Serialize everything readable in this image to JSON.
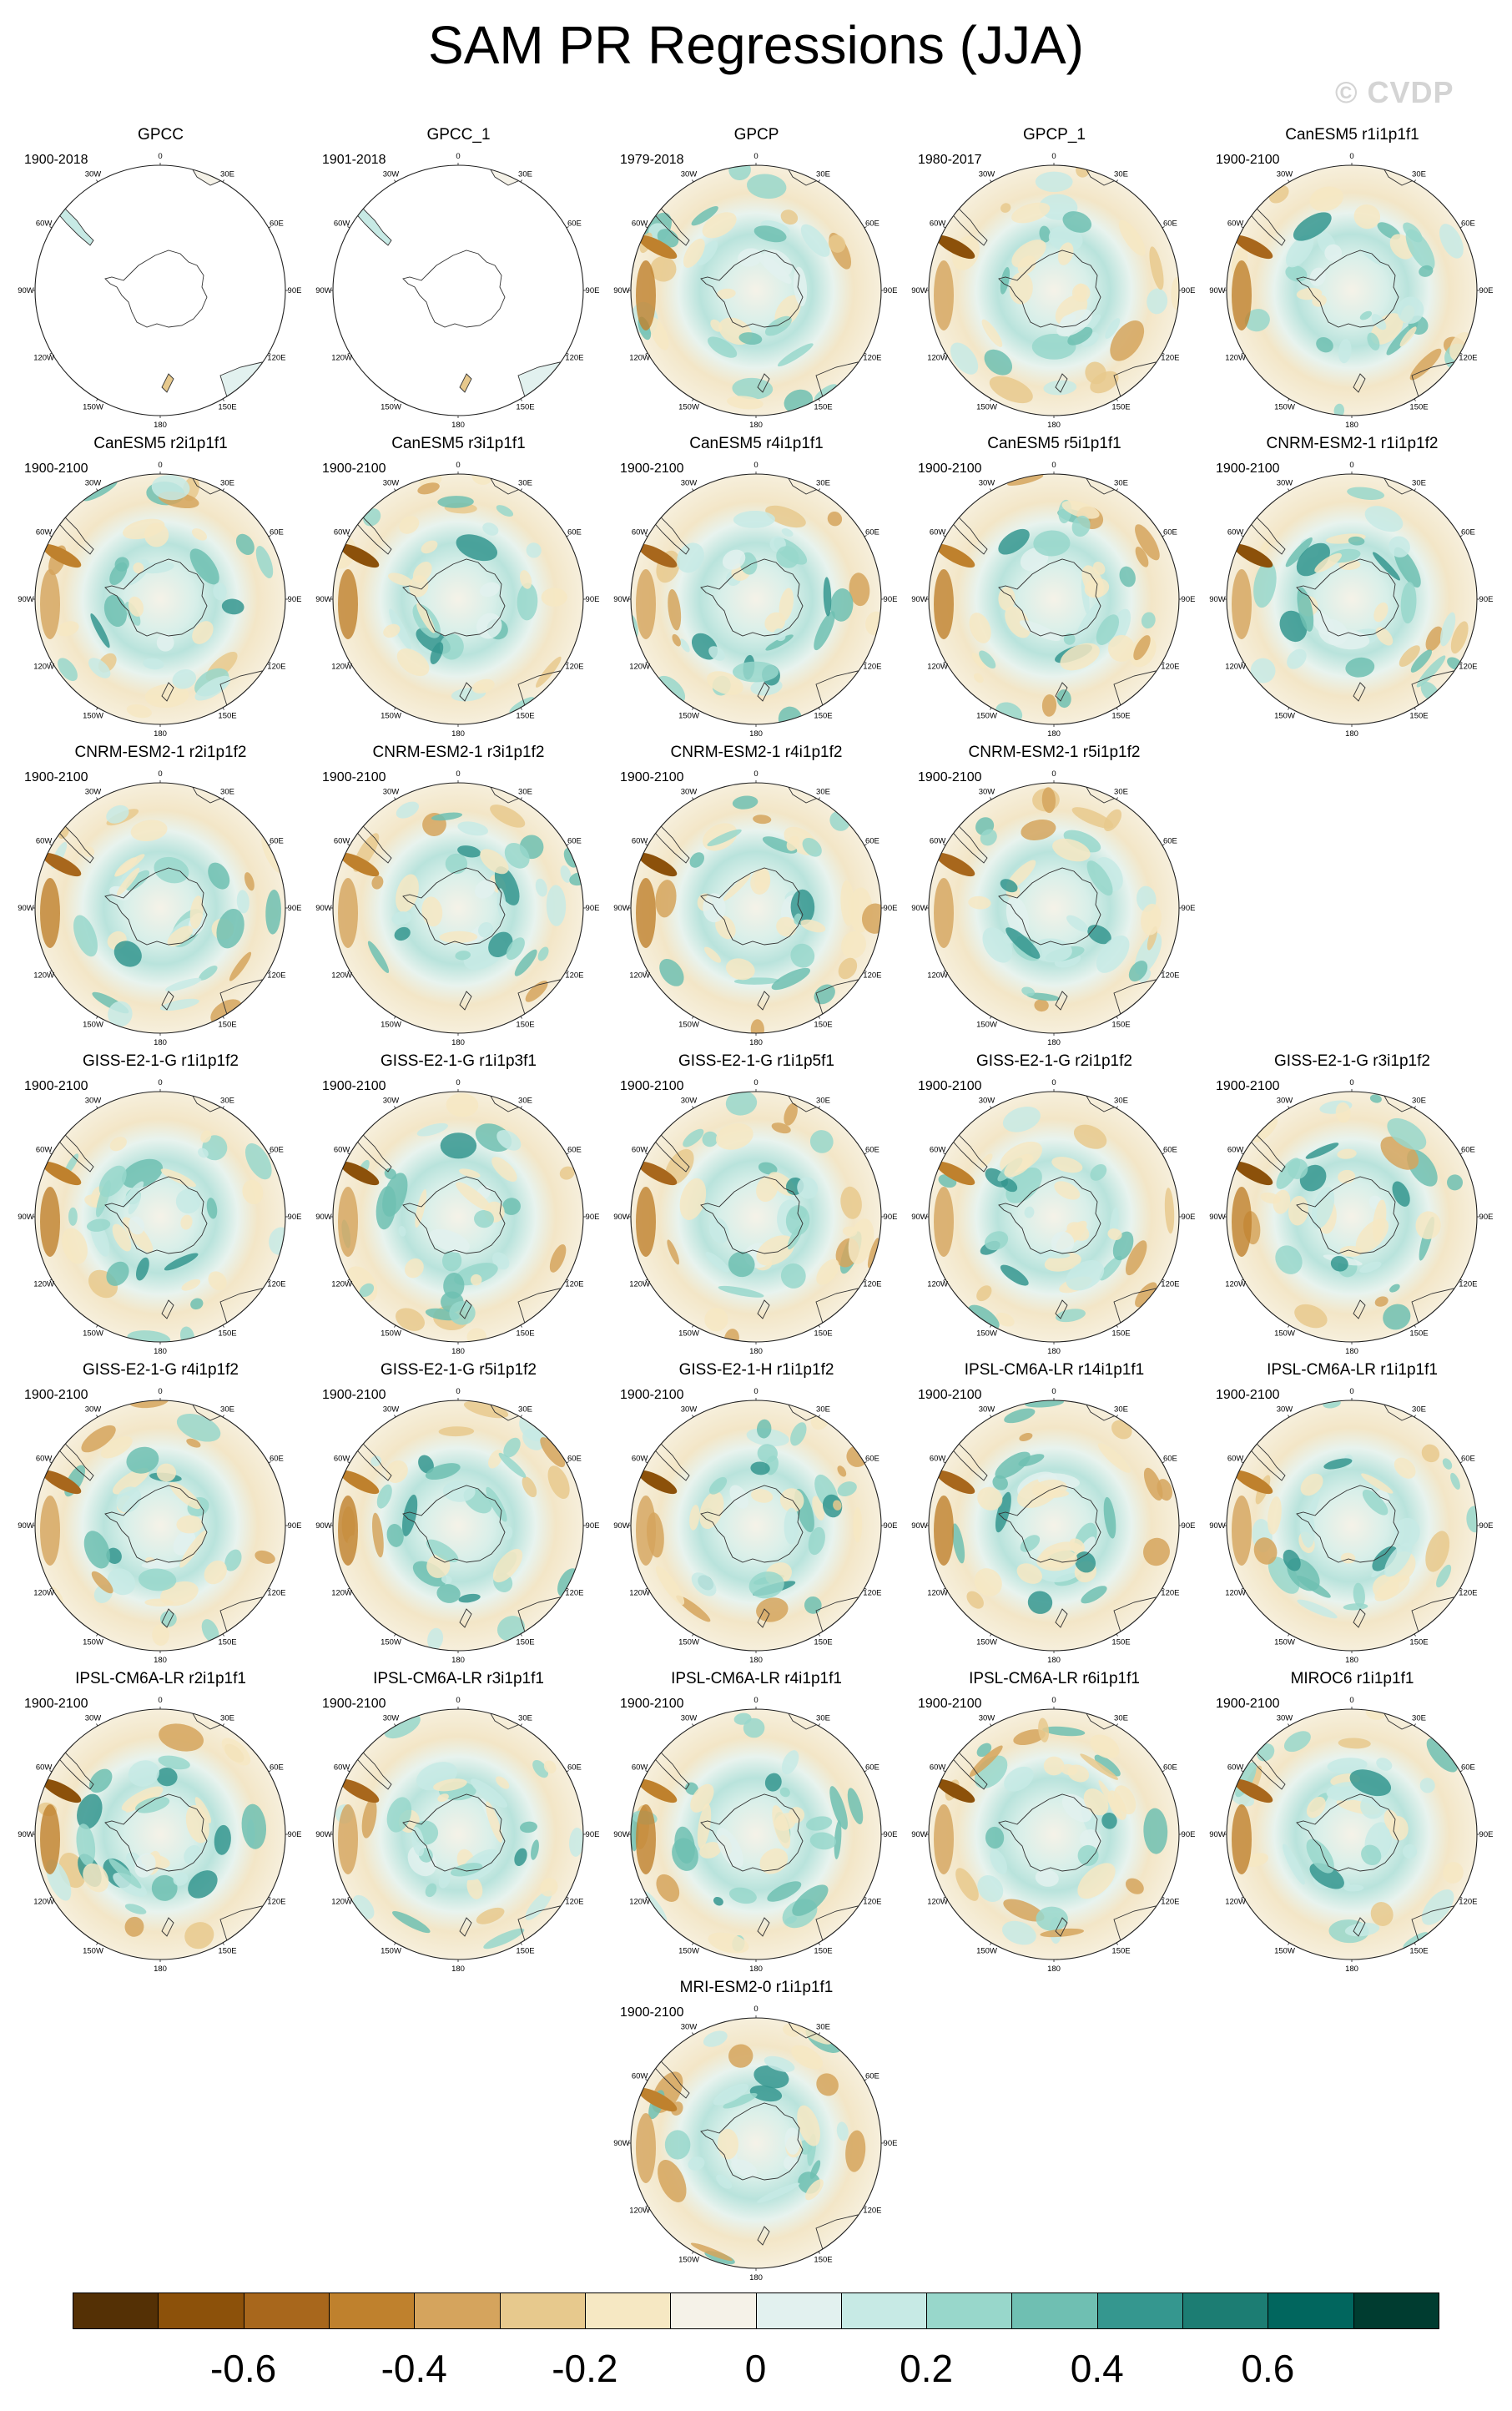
{
  "title": "SAM PR Regressions (JJA)",
  "watermark": "© CVDP",
  "panels": [
    {
      "name": "GPCC",
      "period": "1900-2018",
      "mask": "land"
    },
    {
      "name": "GPCC_1",
      "period": "1901-2018",
      "mask": "land"
    },
    {
      "name": "GPCP",
      "period": "1979-2018"
    },
    {
      "name": "GPCP_1",
      "period": "1980-2017"
    },
    {
      "name": "CanESM5 r1i1p1f1",
      "period": "1900-2100"
    },
    {
      "name": "CanESM5 r2i1p1f1",
      "period": "1900-2100"
    },
    {
      "name": "CanESM5 r3i1p1f1",
      "period": "1900-2100"
    },
    {
      "name": "CanESM5 r4i1p1f1",
      "period": "1900-2100"
    },
    {
      "name": "CanESM5 r5i1p1f1",
      "period": "1900-2100"
    },
    {
      "name": "CNRM-ESM2-1 r1i1p1f2",
      "period": "1900-2100"
    },
    {
      "name": "CNRM-ESM2-1 r2i1p1f2",
      "period": "1900-2100"
    },
    {
      "name": "CNRM-ESM2-1 r3i1p1f2",
      "period": "1900-2100"
    },
    {
      "name": "CNRM-ESM2-1 r4i1p1f2",
      "period": "1900-2100"
    },
    {
      "name": "CNRM-ESM2-1 r5i1p1f2",
      "period": "1900-2100"
    },
    {
      "name": "GISS-E2-1-G r1i1p1f2",
      "period": "1900-2100"
    },
    {
      "name": "GISS-E2-1-G r1i1p3f1",
      "period": "1900-2100"
    },
    {
      "name": "GISS-E2-1-G r1i1p5f1",
      "period": "1900-2100"
    },
    {
      "name": "GISS-E2-1-G r2i1p1f2",
      "period": "1900-2100"
    },
    {
      "name": "GISS-E2-1-G r3i1p1f2",
      "period": "1900-2100"
    },
    {
      "name": "GISS-E2-1-G r4i1p1f2",
      "period": "1900-2100"
    },
    {
      "name": "GISS-E2-1-G r5i1p1f2",
      "period": "1900-2100"
    },
    {
      "name": "GISS-E2-1-H r1i1p1f2",
      "period": "1900-2100"
    },
    {
      "name": "IPSL-CM6A-LR r14i1p1f1",
      "period": "1900-2100"
    },
    {
      "name": "IPSL-CM6A-LR r1i1p1f1",
      "period": "1900-2100"
    },
    {
      "name": "IPSL-CM6A-LR r2i1p1f1",
      "period": "1900-2100"
    },
    {
      "name": "IPSL-CM6A-LR r3i1p1f1",
      "period": "1900-2100"
    },
    {
      "name": "IPSL-CM6A-LR r4i1p1f1",
      "period": "1900-2100"
    },
    {
      "name": "IPSL-CM6A-LR r6i1p1f1",
      "period": "1900-2100"
    },
    {
      "name": "MIROC6 r1i1p1f1",
      "period": "1900-2100"
    },
    {
      "name": "MRI-ESM2-0 r1i1p1f1",
      "period": "1900-2100"
    }
  ],
  "lon_labels": [
    "0",
    "30E",
    "60E",
    "90E",
    "120E",
    "150E",
    "180",
    "150W",
    "120W",
    "90W",
    "60W",
    "30W"
  ],
  "colorbar": {
    "colors": [
      "#543005",
      "#8c510a",
      "#a8671c",
      "#bf812d",
      "#d5a45d",
      "#e7c98d",
      "#f6e8c3",
      "#f5f2e8",
      "#e2f1ef",
      "#c7eae5",
      "#98d7cb",
      "#6fbfb2",
      "#35978f",
      "#1c7d73",
      "#01665e",
      "#003c30"
    ],
    "tick_labels": [
      "-0.6",
      "-0.4",
      "-0.2",
      "0",
      "0.2",
      "0.4",
      "0.6"
    ],
    "tick_boundaries": [
      2,
      4,
      6,
      8,
      10,
      12,
      14
    ]
  }
}
